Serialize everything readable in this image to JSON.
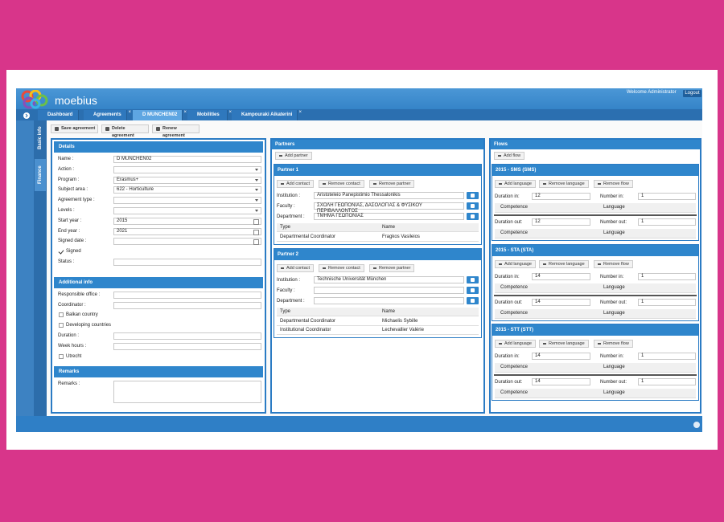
{
  "header": {
    "brand": "moebius",
    "welcome": "Welcome Administrator",
    "logout": "Logout"
  },
  "tabs": [
    {
      "label": "Dashboard"
    },
    {
      "label": "Agreements",
      "closable": true
    },
    {
      "label": "D MUNCHEN02",
      "closable": true,
      "active": true
    },
    {
      "label": "Mobilities",
      "closable": true
    },
    {
      "label": "Kampouraki Aikaterini",
      "closable": true
    }
  ],
  "side_tabs": [
    {
      "label": "Basic info"
    },
    {
      "label": "Finance",
      "active": true
    }
  ],
  "toolbar": [
    "Save agreement",
    "Delete agreement",
    "Renew agreement"
  ],
  "details": {
    "sections": [
      {
        "title": "Details",
        "fields": [
          {
            "label": "Name :",
            "value": "D MUNCHEN02",
            "control": "text"
          },
          {
            "label": "Action :",
            "control": "select"
          },
          {
            "label": "Program :",
            "value": "Erasmus+",
            "control": "select"
          },
          {
            "label": "Subject area :",
            "value": "622 - Horticulture",
            "control": "select"
          },
          {
            "label": "Agreement type :",
            "control": "select"
          },
          {
            "label": "Levels :",
            "control": "select"
          },
          {
            "label": "Start year :",
            "value": "2015",
            "control": "date"
          },
          {
            "label": "End year :",
            "value": "2021",
            "control": "date"
          },
          {
            "label": "Signed date :",
            "control": "date"
          },
          {
            "label": "Signed",
            "control": "check",
            "checked": true
          },
          {
            "label": "Status :",
            "control": "text"
          }
        ]
      },
      {
        "title": "Additional info",
        "fields": [
          {
            "label": "Responsible office :",
            "control": "text"
          },
          {
            "label": "Coordinator :",
            "control": "text"
          },
          {
            "label": "Balkan country",
            "control": "check"
          },
          {
            "label": "Developing countries",
            "control": "check"
          },
          {
            "label": "Duration :",
            "control": "text"
          },
          {
            "label": "Week hours :",
            "control": "text"
          },
          {
            "label": "Utrecht",
            "control": "check"
          }
        ]
      },
      {
        "title": "Remarks",
        "fields": [
          {
            "label": "Remarks :",
            "control": "textarea"
          }
        ]
      }
    ]
  },
  "partners": {
    "title": "Partners",
    "add": "Add partner",
    "items": [
      {
        "title": "Partner 1",
        "buttons": [
          "Add contact",
          "Remove contact",
          "Remove partner"
        ],
        "fields": [
          {
            "label": "Institution :",
            "value": "Aristoteleio Panepistimio Thessalonikis"
          },
          {
            "label": "Faculty :",
            "value": "ΣΧΟΛΗ ΓΕΩΠΟΝΙΑΣ, ΔΑΣΟΛΟΓΙΑΣ & ΦΥΣΙΚΟΥ ΠΕΡΙΒΑΛΛΟΝΤΟΣ"
          },
          {
            "label": "Department :",
            "value": "ΤΜΗΜΑ ΓΕΩΠΟΝΙΑΣ"
          }
        ],
        "columns": [
          "Type",
          "Name"
        ],
        "rows": [
          [
            "Departmental Coordinator",
            "Fragkos Vasileios"
          ]
        ]
      },
      {
        "title": "Partner 2",
        "buttons": [
          "Add contact",
          "Remove contact",
          "Remove partner"
        ],
        "fields": [
          {
            "label": "Institution :",
            "value": "Technische Universität München"
          },
          {
            "label": "Faculty :"
          },
          {
            "label": "Department :"
          }
        ],
        "columns": [
          "Type",
          "Name"
        ],
        "rows": [
          [
            "Departmental Coordinator",
            "Michaelis Sybille"
          ],
          [
            "Institutional Coordinator",
            "Lechevallier Valérie"
          ]
        ]
      }
    ]
  },
  "flows": {
    "title": "Flows",
    "add": "Add flow",
    "items": [
      {
        "title": "2015 - SMS (SMS)",
        "buttons": [
          "Add language",
          "Remove language",
          "Remove flow"
        ],
        "in": {
          "duration_label": "Duration in:",
          "duration": 12,
          "number_label": "Number in:",
          "number": 1
        },
        "in_columns": [
          "Competence",
          "Language"
        ],
        "out": {
          "duration_label": "Duration out:",
          "duration": 12,
          "number_label": "Number out:",
          "number": 1
        },
        "out_columns": [
          "Competence",
          "Language"
        ]
      },
      {
        "title": "2015 - STA (STA)",
        "buttons": [
          "Add language",
          "Remove language",
          "Remove flow"
        ],
        "in": {
          "duration_label": "Duration in:",
          "duration": 14,
          "number_label": "Number in:",
          "number": 1
        },
        "in_columns": [
          "Competence",
          "Language"
        ],
        "out": {
          "duration_label": "Duration out:",
          "duration": 14,
          "number_label": "Number out:",
          "number": 1
        },
        "out_columns": [
          "Competence",
          "Language"
        ]
      },
      {
        "title": "2015 - STT (STT)",
        "buttons": [
          "Add language",
          "Remove language",
          "Remove flow"
        ],
        "in": {
          "duration_label": "Duration in:",
          "duration": 14,
          "number_label": "Number in:",
          "number": 1
        },
        "in_columns": [
          "Competence",
          "Language"
        ],
        "out": {
          "duration_label": "Duration out:",
          "duration": 14,
          "number_label": "Number out:",
          "number": 1
        },
        "out_columns": [
          "Competence",
          "Language"
        ]
      }
    ]
  }
}
